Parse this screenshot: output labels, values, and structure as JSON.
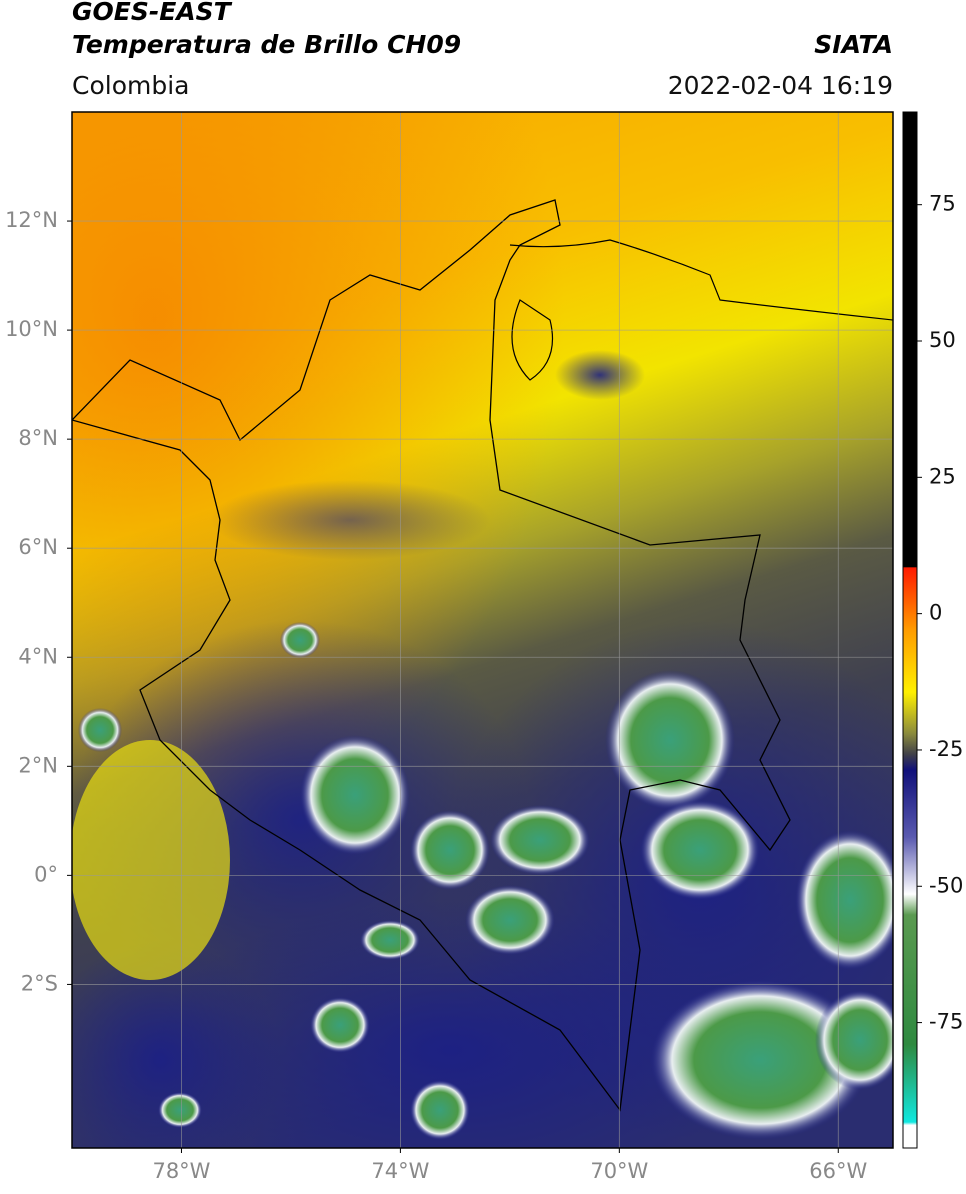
{
  "header": {
    "title_line1": "GOES-EAST",
    "title_line2": "Temperatura de Brillo CH09",
    "source": "SIATA",
    "region": "Colombia",
    "timestamp": "2022-02-04 16:19"
  },
  "map": {
    "xlim": [
      -80,
      -65
    ],
    "ylim": [
      -5,
      14
    ],
    "xticks": [
      {
        "value": -78,
        "label": "78°W"
      },
      {
        "value": -74,
        "label": "74°W"
      },
      {
        "value": -70,
        "label": "70°W"
      },
      {
        "value": -66,
        "label": "66°W"
      }
    ],
    "yticks": [
      {
        "value": 12,
        "label": "12°N"
      },
      {
        "value": 10,
        "label": "10°N"
      },
      {
        "value": 8,
        "label": "8°N"
      },
      {
        "value": 6,
        "label": "6°N"
      },
      {
        "value": 4,
        "label": "4°N"
      },
      {
        "value": 2,
        "label": "2°N"
      },
      {
        "value": 0,
        "label": "0°"
      },
      {
        "value": -2,
        "label": "2°S"
      }
    ],
    "grid": true
  },
  "colorbar": {
    "lim": [
      -98,
      92
    ],
    "ticks": [
      75,
      50,
      25,
      0,
      -25,
      -50,
      -75
    ]
  }
}
